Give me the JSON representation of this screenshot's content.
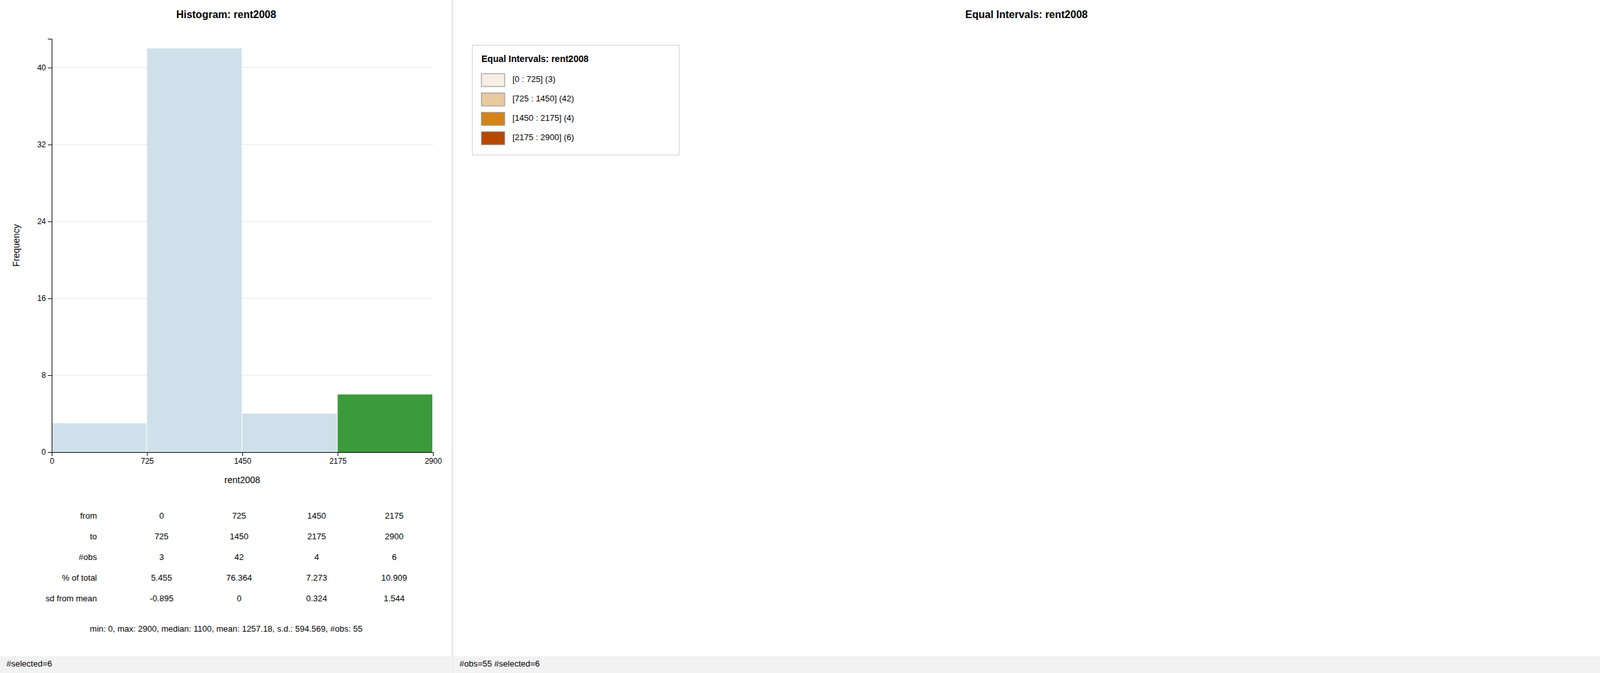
{
  "chart_data": [
    {
      "type": "histogram",
      "title": "Histogram: rent2008",
      "xlabel": "rent2008",
      "ylabel": "Frequency",
      "bins": [
        0,
        725,
        1450,
        2175,
        2900
      ],
      "values": [
        3,
        42,
        4,
        6
      ],
      "colors": [
        "#cfe0ea",
        "#cfe0ea",
        "#cfe0ea",
        "#3b9a3b"
      ],
      "xlim": [
        0,
        2900
      ],
      "ylim": [
        0,
        43
      ],
      "xticks": [
        0,
        725,
        1450,
        2175,
        2900
      ],
      "yticks": [
        0,
        8,
        16,
        24,
        32,
        40
      ],
      "table": {
        "row_labels": [
          "from",
          "to",
          "#obs",
          "% of total",
          "sd from mean"
        ],
        "columns": [
          [
            0,
            725,
            3,
            5.455,
            -0.895
          ],
          [
            725,
            1450,
            42,
            76.364,
            0
          ],
          [
            1450,
            2175,
            4,
            7.273,
            0.324
          ],
          [
            2175,
            2900,
            6,
            10.909,
            1.544
          ]
        ]
      },
      "annotations": [
        "min: 0, max: 2900, median: 1100, mean: 1257.18, s.d.: 594.569, #obs: 55",
        "#selected=6"
      ]
    },
    {
      "type": "map_legend",
      "title": "Equal Intervals: rent2008",
      "legend_title": "Equal Intervals: rent2008",
      "categories": [
        "[0 : 725] (3)",
        "[725 : 1450] (42)",
        "[1450 : 2175] (4)",
        "[2175 : 2900] (6)"
      ],
      "colors": [
        "#f7ede3",
        "#e8c9a0",
        "#d4841a",
        "#b84800"
      ],
      "annotations": [
        "#obs=55 #selected=6"
      ]
    }
  ]
}
